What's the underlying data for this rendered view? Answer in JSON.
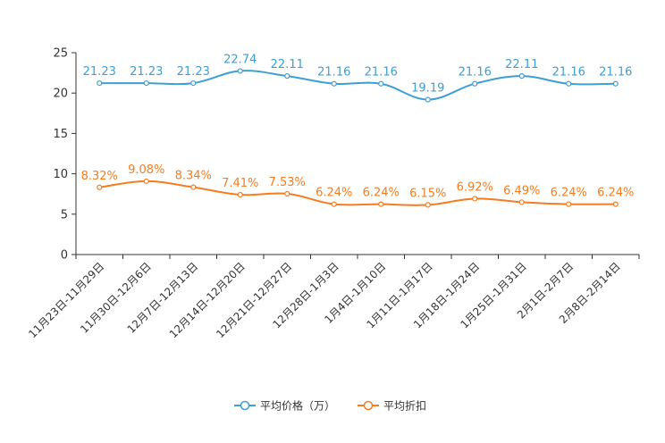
{
  "chart_data": {
    "type": "line",
    "title": "",
    "xlabel": "",
    "ylabel": "",
    "ylim": [
      0,
      25
    ],
    "yticks": [
      0,
      5,
      10,
      15,
      20,
      25
    ],
    "grid": false,
    "legend_position": "bottom-center",
    "categories": [
      "11月23日-11月29日",
      "11月30日-12月6日",
      "12月7日-12月13日",
      "12月14日-12月20日",
      "12月21日-12月27日",
      "12月28日-1月3日",
      "1月4日-1月10日",
      "1月11日-1月17日",
      "1月18日-1月24日",
      "1月25日-1月31日",
      "2月1日-2月7日",
      "2月8日-2月14日"
    ],
    "series": [
      {
        "name": "平均价格（万）",
        "color": "#3d9fd3",
        "values": [
          21.23,
          21.23,
          21.23,
          22.74,
          22.11,
          21.16,
          21.16,
          19.19,
          21.16,
          22.11,
          21.16,
          21.16
        ],
        "labels": [
          "21.23",
          "21.23",
          "21.23",
          "22.74",
          "22.11",
          "21.16",
          "21.16",
          "19.19",
          "21.16",
          "22.11",
          "21.16",
          "21.16"
        ]
      },
      {
        "name": "平均折扣",
        "color": "#f57c1f",
        "values": [
          8.32,
          9.08,
          8.34,
          7.41,
          7.53,
          6.24,
          6.24,
          6.15,
          6.92,
          6.49,
          6.24,
          6.24
        ],
        "labels": [
          "8.32%",
          "9.08%",
          "8.34%",
          "7.41%",
          "7.53%",
          "6.24%",
          "6.24%",
          "6.15%",
          "6.92%",
          "6.49%",
          "6.24%",
          "6.24%"
        ]
      }
    ]
  }
}
